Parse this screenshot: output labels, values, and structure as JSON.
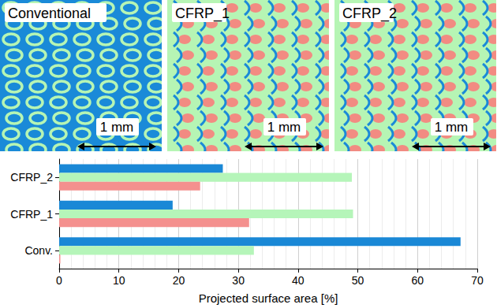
{
  "panels": [
    {
      "label": "Conventional",
      "scale_bar": "1 mm"
    },
    {
      "label": "CFRP_1",
      "scale_bar": "1 mm"
    },
    {
      "label": "CFRP_2",
      "scale_bar": "1 mm"
    }
  ],
  "chart_data": {
    "type": "bar",
    "orientation": "horizontal",
    "categories": [
      "Conv.",
      "CFRP_1",
      "CFRP_2"
    ],
    "series": [
      {
        "color": "#1a88d6",
        "values": [
          67.2,
          19.0,
          27.4
        ]
      },
      {
        "color": "#b5f5b9",
        "values": [
          32.6,
          49.2,
          49.0
        ]
      },
      {
        "color": "#f4908e",
        "values": [
          0.2,
          31.8,
          23.6
        ]
      }
    ],
    "xlabel": "Projected surface area [%]",
    "xlim": [
      0,
      70
    ],
    "xticks": [
      0,
      10,
      20,
      30,
      40,
      50,
      60,
      70
    ],
    "grid": true
  }
}
